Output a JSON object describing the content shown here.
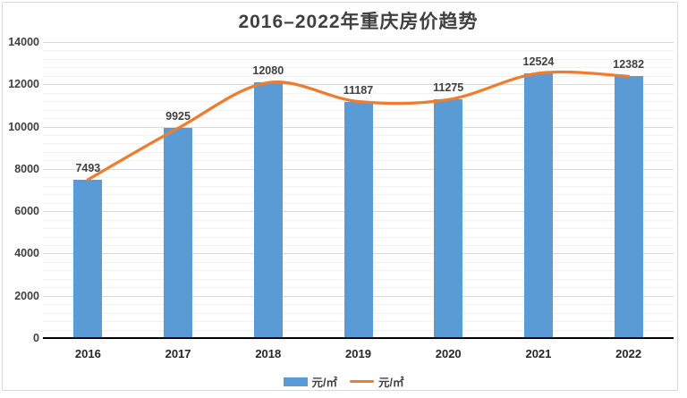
{
  "chart_data": {
    "type": "combo",
    "title": "2016–2022年重庆房价趋势",
    "categories": [
      "2016",
      "2017",
      "2018",
      "2019",
      "2020",
      "2021",
      "2022"
    ],
    "series": [
      {
        "name": "元/㎡",
        "type": "bar",
        "color": "#5B9BD5",
        "values": [
          7493,
          9925,
          12080,
          11187,
          11275,
          12524,
          12382
        ]
      },
      {
        "name": "元/㎡",
        "type": "line",
        "color": "#ED7D31",
        "smooth": true,
        "values": [
          7493,
          9925,
          12080,
          11187,
          11275,
          12524,
          12382
        ]
      }
    ],
    "data_labels": [
      "7493",
      "9925",
      "12080",
      "11187",
      "11275",
      "12524",
      "12382"
    ],
    "xlabel": "",
    "ylabel": "",
    "ylim": [
      0,
      14000
    ],
    "y_major_step": 2000,
    "y_minor_step": 400,
    "y_tick_labels": [
      "0",
      "2000",
      "4000",
      "6000",
      "8000",
      "10000",
      "12000",
      "14000"
    ],
    "grid": "major+minor",
    "legend_position": "bottom-center",
    "colors": {
      "axis_line": "#000000",
      "major_grid": "#d9d9d9",
      "minor_grid": "#f2f2f2",
      "title_text": "#404040",
      "label_text": "#404040"
    }
  }
}
